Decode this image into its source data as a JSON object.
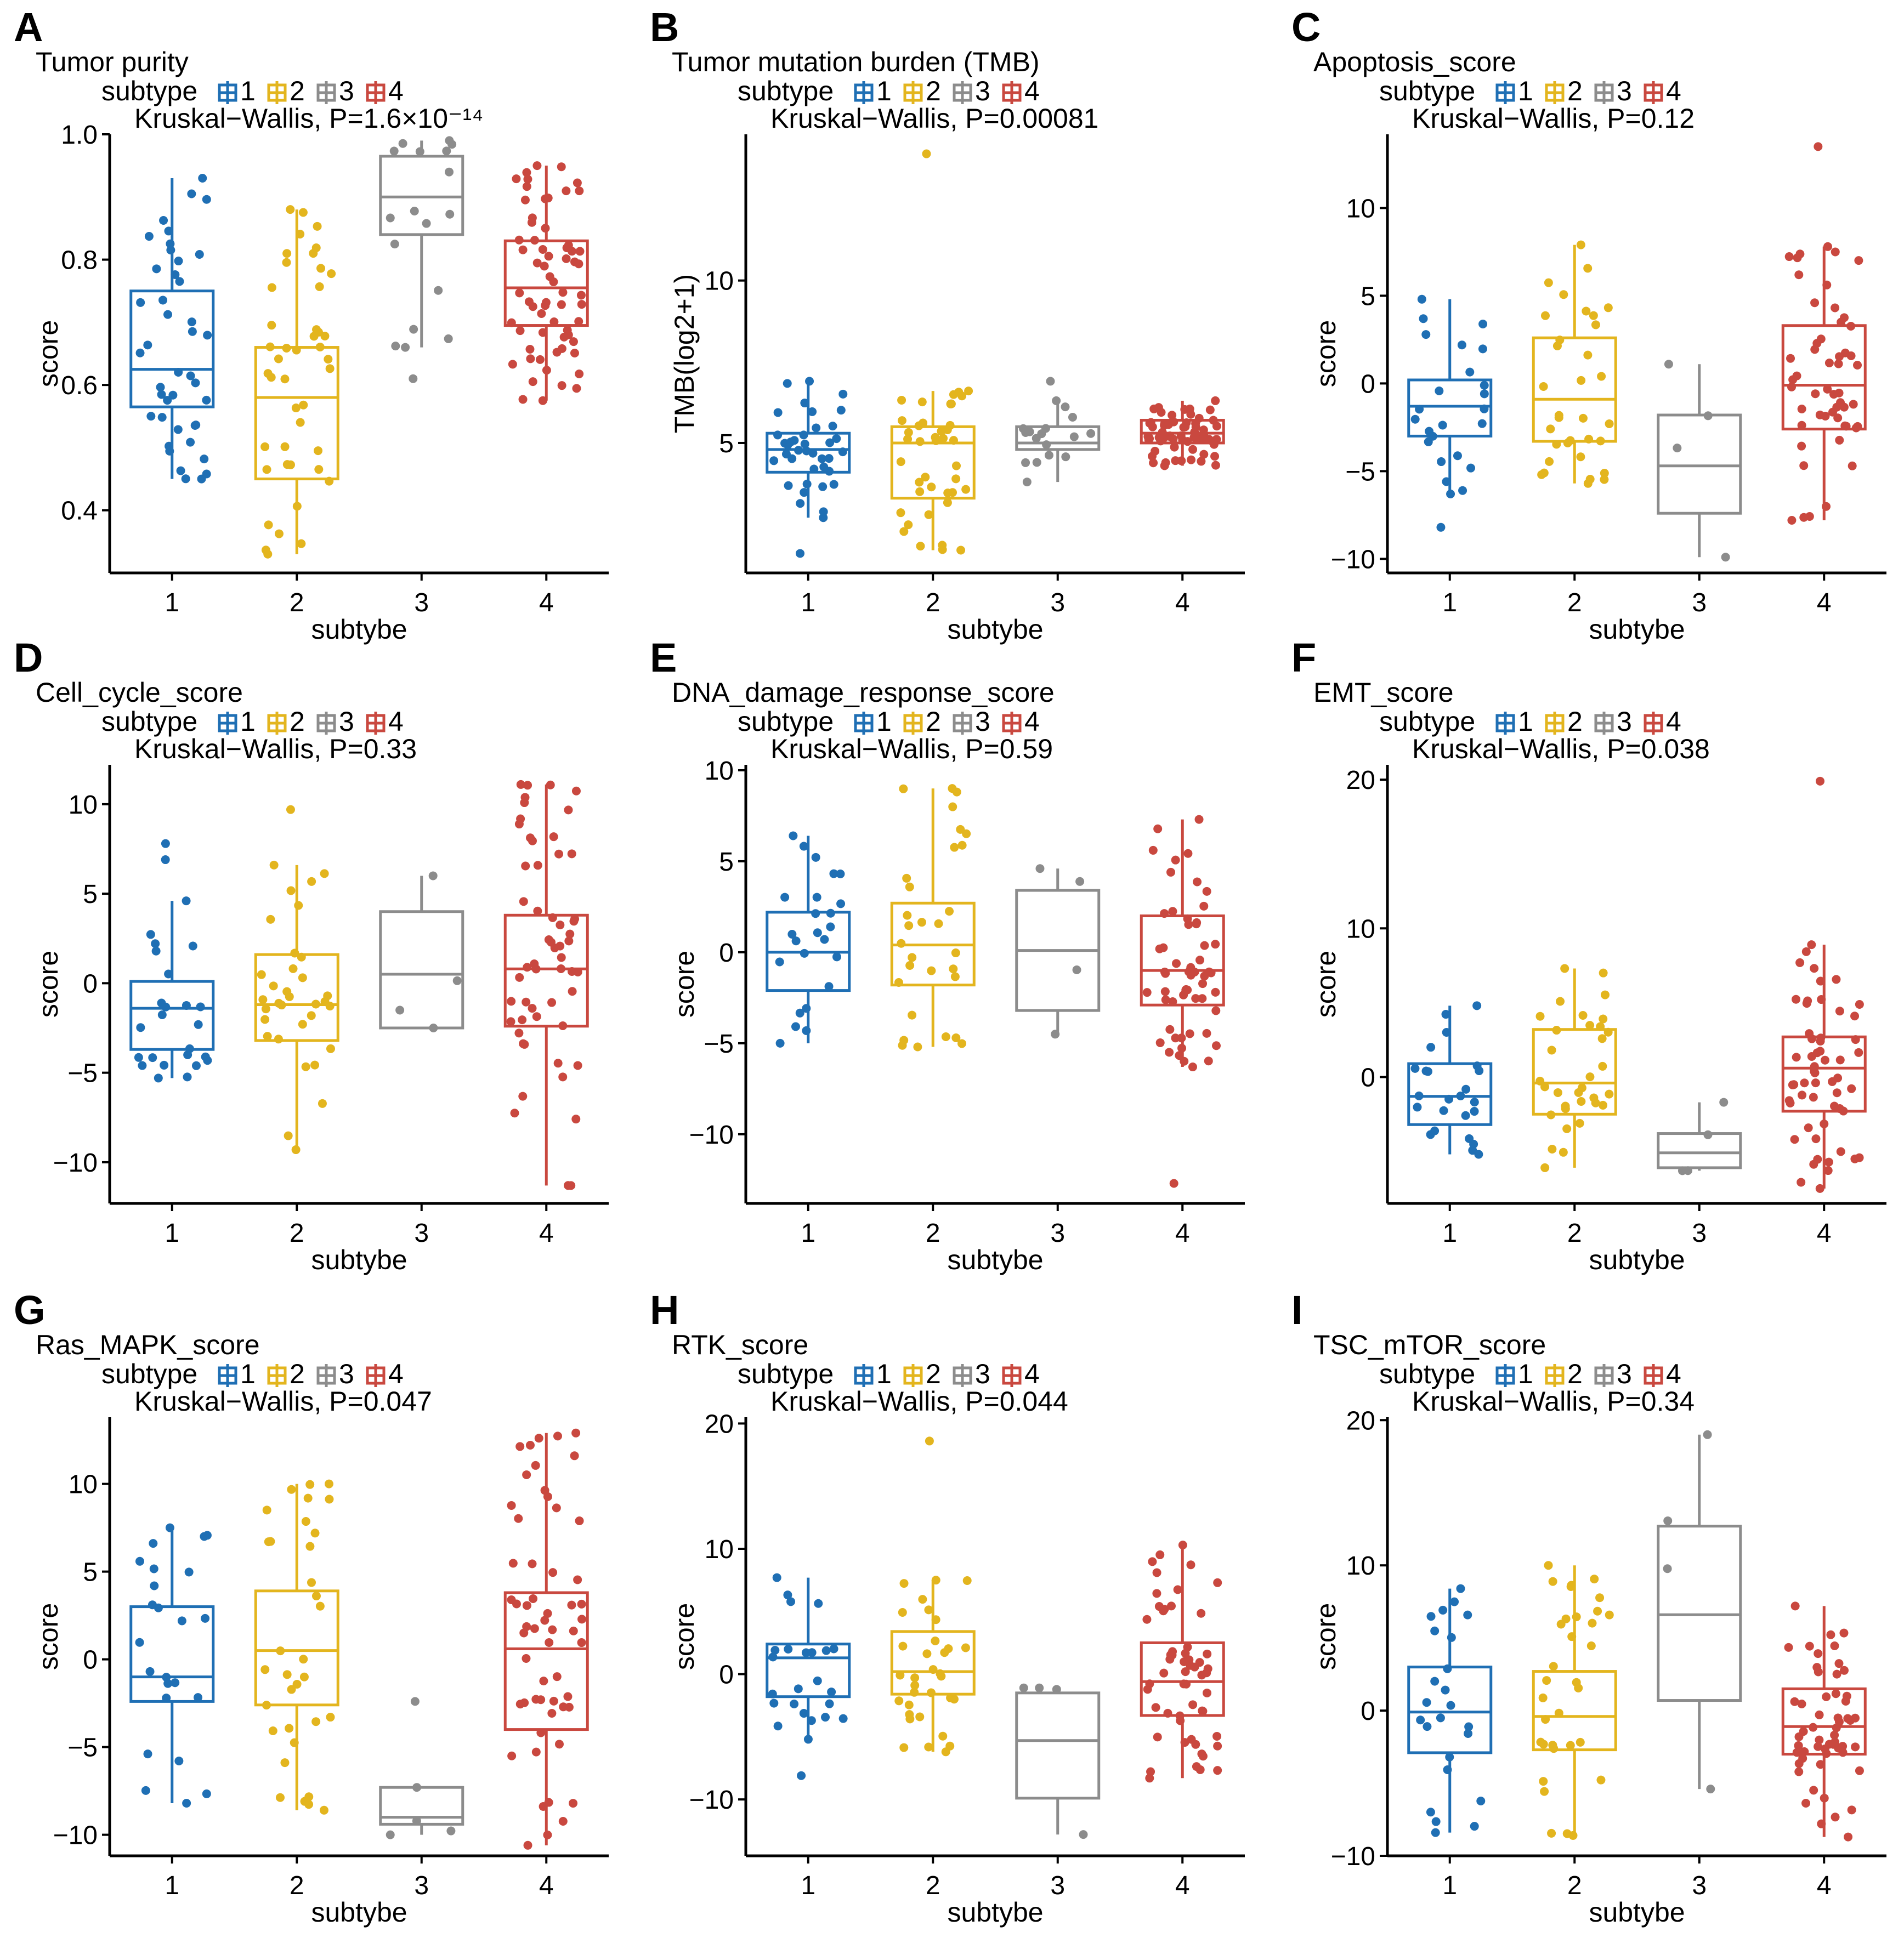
{
  "colors": {
    "1": "#1f6fb4",
    "2": "#e3b51e",
    "3": "#8c8c8c",
    "4": "#c9483f"
  },
  "legend": {
    "title": "subtype",
    "labels": [
      "1",
      "2",
      "3",
      "4"
    ]
  },
  "chart_data": [
    {
      "panel": "A",
      "type": "boxplot",
      "title": "Tumor purity",
      "stat_text": "Kruskal−Wallis, P=1.6×10⁻¹⁴",
      "xlabel": "subtybe",
      "ylabel": "score",
      "categories": [
        "1",
        "2",
        "3",
        "4"
      ],
      "ylim": [
        0.3,
        1.0
      ],
      "yticks": [
        0.4,
        0.6,
        0.8,
        1.0
      ],
      "ytick_labels": [
        "0.4",
        "0.6",
        "0.8",
        "1.0"
      ],
      "boxes": [
        {
          "subtype": "1",
          "whisker_low": 0.45,
          "q1": 0.565,
          "median": 0.625,
          "q3": 0.75,
          "whisker_high": 0.93
        },
        {
          "subtype": "2",
          "whisker_low": 0.33,
          "q1": 0.45,
          "median": 0.58,
          "q3": 0.66,
          "whisker_high": 0.88
        },
        {
          "subtype": "3",
          "whisker_low": 0.66,
          "q1": 0.84,
          "median": 0.9,
          "q3": 0.965,
          "whisker_high": 0.99
        },
        {
          "subtype": "4",
          "whisker_low": 0.575,
          "q1": 0.695,
          "median": 0.755,
          "q3": 0.83,
          "whisker_high": 0.95
        }
      ],
      "outliers": [
        {
          "subtype": "3",
          "value": 0.61
        }
      ],
      "n_points": [
        42,
        44,
        17,
        64
      ]
    },
    {
      "panel": "B",
      "type": "boxplot",
      "title": "Tumor mutation burden (TMB)",
      "stat_text": "Kruskal−Wallis, P=0.00081",
      "xlabel": "subtybe",
      "ylabel": "TMB(log2+1)",
      "categories": [
        "1",
        "2",
        "3",
        "4"
      ],
      "ylim": [
        1.0,
        14.5
      ],
      "yticks": [
        5,
        10
      ],
      "ytick_labels": [
        "5",
        "10"
      ],
      "boxes": [
        {
          "subtype": "1",
          "whisker_low": 2.7,
          "q1": 4.1,
          "median": 4.8,
          "q3": 5.3,
          "whisker_high": 6.9
        },
        {
          "subtype": "2",
          "whisker_low": 1.7,
          "q1": 3.3,
          "median": 5.0,
          "q3": 5.5,
          "whisker_high": 6.6
        },
        {
          "subtype": "3",
          "whisker_low": 3.8,
          "q1": 4.8,
          "median": 5.0,
          "q3": 5.5,
          "whisker_high": 6.3
        },
        {
          "subtype": "4",
          "whisker_low": 4.3,
          "q1": 5.0,
          "median": 5.3,
          "q3": 5.7,
          "whisker_high": 6.3
        }
      ],
      "outliers": [
        {
          "subtype": "1",
          "value": 1.6
        },
        {
          "subtype": "2",
          "value": 13.9
        },
        {
          "subtype": "3",
          "value": 6.9
        }
      ],
      "n_points": [
        38,
        40,
        17,
        64
      ]
    },
    {
      "panel": "C",
      "type": "boxplot",
      "title": "Apoptosis_score",
      "stat_text": "Kruskal−Wallis, P=0.12",
      "xlabel": "subtybe",
      "ylabel": "score",
      "categories": [
        "1",
        "2",
        "3",
        "4"
      ],
      "ylim": [
        -10.8,
        14.2
      ],
      "yticks": [
        -10,
        -5,
        0,
        5,
        10
      ],
      "ytick_labels": [
        "−10",
        "−5",
        "0",
        "5",
        "10"
      ],
      "boxes": [
        {
          "subtype": "1",
          "whisker_low": -6.3,
          "q1": -3.0,
          "median": -1.3,
          "q3": 0.2,
          "whisker_high": 4.8
        },
        {
          "subtype": "2",
          "whisker_low": -5.7,
          "q1": -3.3,
          "median": -0.9,
          "q3": 2.6,
          "whisker_high": 7.9
        },
        {
          "subtype": "3",
          "whisker_low": -9.9,
          "q1": -7.4,
          "median": -4.7,
          "q3": -1.8,
          "whisker_high": 1.1
        },
        {
          "subtype": "4",
          "whisker_low": -7.8,
          "q1": -2.6,
          "median": -0.1,
          "q3": 3.3,
          "whisker_high": 7.8
        }
      ],
      "outliers": [
        {
          "subtype": "1",
          "value": -8.2
        },
        {
          "subtype": "4",
          "value": 13.5
        }
      ],
      "n_points": [
        24,
        33,
        4,
        52
      ]
    },
    {
      "panel": "D",
      "type": "boxplot",
      "title": "Cell_cycle_score",
      "stat_text": "Kruskal−Wallis, P=0.33",
      "xlabel": "subtybe",
      "ylabel": "score",
      "categories": [
        "1",
        "2",
        "3",
        "4"
      ],
      "ylim": [
        -12.3,
        12.2
      ],
      "yticks": [
        -10,
        -5,
        0,
        5,
        10
      ],
      "ytick_labels": [
        "−10",
        "−5",
        "0",
        "5",
        "10"
      ],
      "boxes": [
        {
          "subtype": "1",
          "whisker_low": -5.3,
          "q1": -3.7,
          "median": -1.4,
          "q3": 0.1,
          "whisker_high": 4.6
        },
        {
          "subtype": "2",
          "whisker_low": -9.3,
          "q1": -3.2,
          "median": -1.2,
          "q3": 1.6,
          "whisker_high": 6.6
        },
        {
          "subtype": "3",
          "whisker_low": -2.5,
          "q1": -2.5,
          "median": 0.5,
          "q3": 4.0,
          "whisker_high": 6.0
        },
        {
          "subtype": "4",
          "whisker_low": -11.3,
          "q1": -2.4,
          "median": 0.8,
          "q3": 3.8,
          "whisker_high": 11.1
        }
      ],
      "outliers": [
        {
          "subtype": "1",
          "value": 7.8
        },
        {
          "subtype": "1",
          "value": 6.9
        },
        {
          "subtype": "2",
          "value": 9.7
        }
      ],
      "n_points": [
        24,
        33,
        4,
        56
      ]
    },
    {
      "panel": "E",
      "type": "boxplot",
      "title": "DNA_damage_response_score",
      "stat_text": "Kruskal−Wallis, P=0.59",
      "xlabel": "subtybe",
      "ylabel": "score",
      "categories": [
        "1",
        "2",
        "3",
        "4"
      ],
      "ylim": [
        -13.8,
        10.3
      ],
      "yticks": [
        -10,
        -5,
        0,
        5,
        10
      ],
      "ytick_labels": [
        "−10",
        "−5",
        "0",
        "5",
        "10"
      ],
      "boxes": [
        {
          "subtype": "1",
          "whisker_low": -5.0,
          "q1": -2.1,
          "median": 0.0,
          "q3": 2.2,
          "whisker_high": 6.4
        },
        {
          "subtype": "2",
          "whisker_low": -5.2,
          "q1": -1.8,
          "median": 0.4,
          "q3": 2.7,
          "whisker_high": 9.0
        },
        {
          "subtype": "3",
          "whisker_low": -4.5,
          "q1": -3.2,
          "median": 0.1,
          "q3": 3.4,
          "whisker_high": 4.6
        },
        {
          "subtype": "4",
          "whisker_low": -6.3,
          "q1": -2.9,
          "median": -1.0,
          "q3": 2.0,
          "whisker_high": 7.3
        }
      ],
      "outliers": [
        {
          "subtype": "4",
          "value": -12.7
        }
      ],
      "n_points": [
        24,
        30,
        4,
        56
      ]
    },
    {
      "panel": "F",
      "type": "boxplot",
      "title": "EMT_score",
      "stat_text": "Kruskal−Wallis, P=0.038",
      "xlabel": "subtybe",
      "ylabel": "score",
      "categories": [
        "1",
        "2",
        "3",
        "4"
      ],
      "ylim": [
        -8.5,
        21.0
      ],
      "yticks": [
        0,
        10,
        20
      ],
      "ytick_labels": [
        "0",
        "10",
        "20"
      ],
      "boxes": [
        {
          "subtype": "1",
          "whisker_low": -5.2,
          "q1": -3.2,
          "median": -1.3,
          "q3": 0.9,
          "whisker_high": 4.8
        },
        {
          "subtype": "2",
          "whisker_low": -6.1,
          "q1": -2.5,
          "median": -0.4,
          "q3": 3.2,
          "whisker_high": 7.3
        },
        {
          "subtype": "3",
          "whisker_low": -6.3,
          "q1": -6.1,
          "median": -5.1,
          "q3": -3.8,
          "whisker_high": -1.7
        },
        {
          "subtype": "4",
          "whisker_low": -7.5,
          "q1": -2.3,
          "median": 0.6,
          "q3": 2.7,
          "whisker_high": 8.9
        }
      ],
      "outliers": [
        {
          "subtype": "4",
          "value": 19.9
        }
      ],
      "n_points": [
        24,
        33,
        4,
        56
      ]
    },
    {
      "panel": "G",
      "type": "boxplot",
      "title": "Ras_MAPK_score",
      "stat_text": "Kruskal−Wallis, P=0.047",
      "xlabel": "subtybe",
      "ylabel": "score",
      "categories": [
        "1",
        "2",
        "3",
        "4"
      ],
      "ylim": [
        -11.2,
        13.8
      ],
      "yticks": [
        -10,
        -5,
        0,
        5,
        10
      ],
      "ytick_labels": [
        "−10",
        "−5",
        "0",
        "5",
        "10"
      ],
      "boxes": [
        {
          "subtype": "1",
          "whisker_low": -8.2,
          "q1": -2.4,
          "median": -1.0,
          "q3": 3.0,
          "whisker_high": 7.5
        },
        {
          "subtype": "2",
          "whisker_low": -8.6,
          "q1": -2.6,
          "median": 0.5,
          "q3": 3.9,
          "whisker_high": 10.0
        },
        {
          "subtype": "3",
          "whisker_low": -10.0,
          "q1": -9.4,
          "median": -9.0,
          "q3": -7.3,
          "whisker_high": -7.3
        },
        {
          "subtype": "4",
          "whisker_low": -10.6,
          "q1": -4.0,
          "median": 0.6,
          "q3": 3.8,
          "whisker_high": 12.9
        }
      ],
      "outliers": [
        {
          "subtype": "3",
          "value": -2.4
        }
      ],
      "n_points": [
        24,
        33,
        4,
        56
      ]
    },
    {
      "panel": "H",
      "type": "boxplot",
      "title": "RTK_score",
      "stat_text": "Kruskal−Wallis, P=0.044",
      "xlabel": "subtybe",
      "ylabel": "score",
      "categories": [
        "1",
        "2",
        "3",
        "4"
      ],
      "ylim": [
        -14.5,
        20.5
      ],
      "yticks": [
        -10,
        0,
        10,
        20
      ],
      "ytick_labels": [
        "−10",
        "0",
        "10",
        "20"
      ],
      "boxes": [
        {
          "subtype": "1",
          "whisker_low": -5.2,
          "q1": -1.8,
          "median": 1.3,
          "q3": 2.4,
          "whisker_high": 7.7
        },
        {
          "subtype": "2",
          "whisker_low": -6.2,
          "q1": -1.6,
          "median": 0.2,
          "q3": 3.4,
          "whisker_high": 7.5
        },
        {
          "subtype": "3",
          "whisker_low": -12.8,
          "q1": -9.9,
          "median": -5.3,
          "q3": -1.5,
          "whisker_high": -1.1
        },
        {
          "subtype": "4",
          "whisker_low": -8.3,
          "q1": -3.3,
          "median": -0.6,
          "q3": 2.5,
          "whisker_high": 10.3
        }
      ],
      "outliers": [
        {
          "subtype": "1",
          "value": -8.1
        },
        {
          "subtype": "2",
          "value": 18.6
        }
      ],
      "n_points": [
        24,
        33,
        4,
        56
      ]
    },
    {
      "panel": "I",
      "type": "boxplot",
      "title": "TSC_mTOR_score",
      "stat_text": "Kruskal−Wallis, P=0.34",
      "xlabel": "subtybe",
      "ylabel": "score",
      "categories": [
        "1",
        "2",
        "3",
        "4"
      ],
      "ylim": [
        -10.0,
        20.2
      ],
      "yticks": [
        -10,
        0,
        10,
        20
      ],
      "ytick_labels": [
        "−10",
        "0",
        "10",
        "20"
      ],
      "boxes": [
        {
          "subtype": "1",
          "whisker_low": -8.4,
          "q1": -2.9,
          "median": -0.1,
          "q3": 3.0,
          "whisker_high": 8.4
        },
        {
          "subtype": "2",
          "whisker_low": -8.6,
          "q1": -2.7,
          "median": -0.4,
          "q3": 2.7,
          "whisker_high": 10.0
        },
        {
          "subtype": "3",
          "whisker_low": -5.4,
          "q1": 0.7,
          "median": 6.6,
          "q3": 12.7,
          "whisker_high": 19.0
        },
        {
          "subtype": "4",
          "whisker_low": -8.7,
          "q1": -3.0,
          "median": -1.1,
          "q3": 1.5,
          "whisker_high": 7.2
        }
      ],
      "outliers": [],
      "n_points": [
        24,
        33,
        4,
        56
      ]
    }
  ]
}
